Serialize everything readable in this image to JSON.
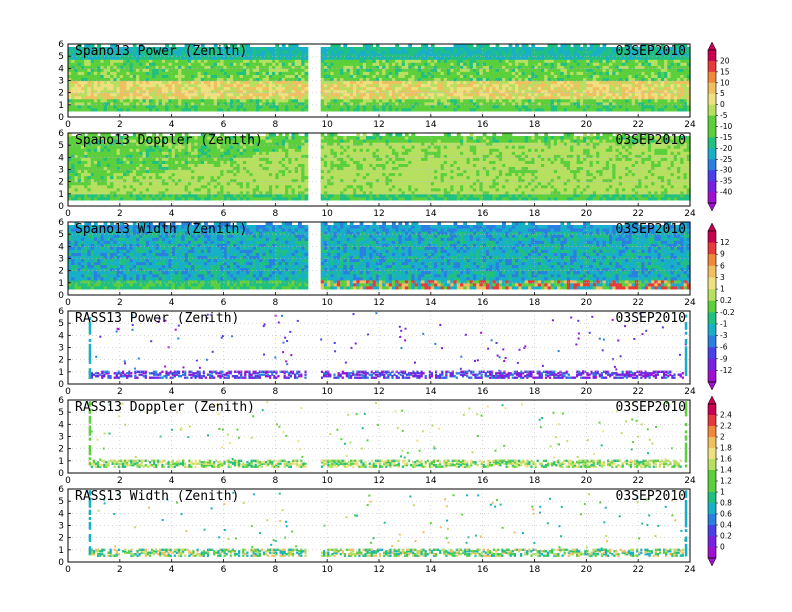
{
  "chart_data": [
    {
      "type": "heatmap",
      "title": "Spano13 Power (Zenith)",
      "date": "03SEP2010",
      "xlim": [
        0,
        24
      ],
      "ylim": [
        0,
        6
      ],
      "xticks": [
        0,
        2,
        4,
        6,
        8,
        10,
        12,
        14,
        16,
        18,
        20,
        22,
        24
      ],
      "yticks": [
        0,
        1,
        2,
        3,
        4,
        5,
        6
      ],
      "gap": [
        9.2,
        9.7
      ],
      "min_height": 0.5,
      "colorbar": "cb1"
    },
    {
      "type": "heatmap",
      "title": "Spano13 Doppler (Zenith)",
      "date": "03SEP2010",
      "xlim": [
        0,
        24
      ],
      "ylim": [
        0,
        6
      ],
      "xticks": [
        0,
        2,
        4,
        6,
        8,
        10,
        12,
        14,
        16,
        18,
        20,
        22,
        24
      ],
      "yticks": [
        0,
        1,
        2,
        3,
        4,
        5,
        6
      ],
      "gap": [
        9.2,
        9.7
      ],
      "min_height": 0.5,
      "colorbar": "cb1"
    },
    {
      "type": "heatmap",
      "title": "Spano13 Width (Zenith)",
      "date": "03SEP2010",
      "xlim": [
        0,
        24
      ],
      "ylim": [
        0,
        6
      ],
      "xticks": [
        0,
        2,
        4,
        6,
        8,
        10,
        12,
        14,
        16,
        18,
        20,
        22,
        24
      ],
      "yticks": [
        0,
        1,
        2,
        3,
        4,
        5,
        6
      ],
      "gap": [
        9.2,
        9.7
      ],
      "min_height": 0.5,
      "colorbar": "cb2"
    },
    {
      "type": "heatmap",
      "title": "RASS13 Power (Zenith)",
      "date": "03SEP2010",
      "xlim": [
        0,
        24
      ],
      "ylim": [
        0,
        6
      ],
      "xticks": [
        0,
        2,
        4,
        6,
        8,
        10,
        12,
        14,
        16,
        18,
        20,
        22,
        24
      ],
      "yticks": [
        0,
        1,
        2,
        3,
        4,
        5,
        6
      ],
      "gap": [
        9.2,
        9.7
      ],
      "min_height": 0.5,
      "colorbar": "cb2"
    },
    {
      "type": "heatmap",
      "title": "RASS13 Doppler (Zenith)",
      "date": "03SEP2010",
      "xlim": [
        0,
        24
      ],
      "ylim": [
        0,
        6
      ],
      "xticks": [
        0,
        2,
        4,
        6,
        8,
        10,
        12,
        14,
        16,
        18,
        20,
        22,
        24
      ],
      "yticks": [
        0,
        1,
        2,
        3,
        4,
        5,
        6
      ],
      "gap": [
        9.2,
        9.7
      ],
      "min_height": 0.5,
      "colorbar": "cb3"
    },
    {
      "type": "heatmap",
      "title": "RASS13 Width (Zenith)",
      "date": "03SEP2010",
      "xlim": [
        0,
        24
      ],
      "ylim": [
        0,
        6
      ],
      "xticks": [
        0,
        2,
        4,
        6,
        8,
        10,
        12,
        14,
        16,
        18,
        20,
        22,
        24
      ],
      "yticks": [
        0,
        1,
        2,
        3,
        4,
        5,
        6
      ],
      "gap": [
        9.2,
        9.7
      ],
      "min_height": 0.5,
      "colorbar": "cb3"
    }
  ],
  "colorbars": {
    "cb1": {
      "labels": [
        "20",
        "15",
        "10",
        "5",
        "0",
        "-5",
        "-10",
        "-15",
        "-20",
        "-25",
        "-30",
        "-35",
        "-40"
      ]
    },
    "cb2": {
      "labels": [
        "12",
        "9",
        "6",
        "3",
        "1",
        "0.2",
        "-0.2",
        "-1",
        "-3",
        "-6",
        "-9",
        "-12"
      ]
    },
    "cb3": {
      "labels": [
        "2.4",
        "2.2",
        "2",
        "1.8",
        "1.6",
        "1.4",
        "1.2",
        "1",
        "0.8",
        "0.6",
        "0.4",
        "0.2",
        "0"
      ]
    }
  },
  "palette": [
    "#c9004f",
    "#e83a3a",
    "#f08a3a",
    "#f0c060",
    "#f0e080",
    "#b8e060",
    "#5cd03c",
    "#20c080",
    "#18b0c8",
    "#2a80e0",
    "#4a40e8",
    "#7a20e0",
    "#a010d0"
  ]
}
